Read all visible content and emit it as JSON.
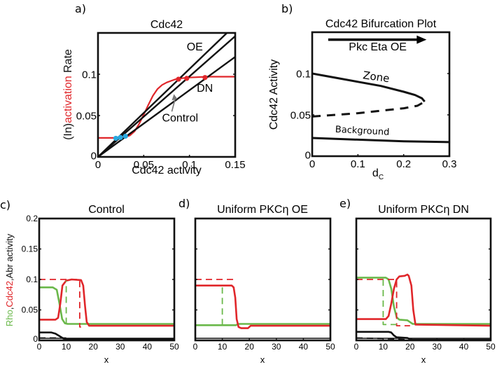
{
  "colors": {
    "red": "#e0262a",
    "green": "#6ab84a",
    "blue": "#29a9e0",
    "black": "#111111",
    "gray": "#777777"
  },
  "chart_data": [
    {
      "id": "a",
      "panel_label": "a)",
      "type": "line",
      "title": "Cdc42",
      "xlabel": "Cdc42 activity",
      "ylabel_parts": [
        {
          "text": "(In)",
          "color": "black"
        },
        {
          "text": "activation",
          "color": "red"
        },
        {
          "text": " Rate",
          "color": "black"
        }
      ],
      "xlim": [
        0,
        0.15
      ],
      "ylim": [
        0,
        0.15
      ],
      "xticks": [
        0,
        0.05,
        0.1,
        0.15
      ],
      "xtick_labels": [
        "0",
        "0.05",
        "0.1",
        "0.15"
      ],
      "yticks": [
        0,
        0.05,
        0.1
      ],
      "ytick_labels": [
        "0",
        "0.05",
        "0.1"
      ],
      "series": [
        {
          "name": "activation",
          "color": "red",
          "style": "solid",
          "x": [
            0,
            0.01,
            0.02,
            0.03,
            0.035,
            0.04,
            0.045,
            0.05,
            0.055,
            0.06,
            0.065,
            0.07,
            0.075,
            0.08,
            0.085,
            0.09,
            0.1,
            0.12,
            0.15
          ],
          "y": [
            0.023,
            0.023,
            0.023,
            0.024,
            0.026,
            0.031,
            0.04,
            0.051,
            0.063,
            0.074,
            0.082,
            0.087,
            0.09,
            0.092,
            0.094,
            0.095,
            0.096,
            0.097,
            0.097
          ]
        },
        {
          "name": "OE",
          "color": "black",
          "style": "solid",
          "x": [
            0,
            0.141
          ],
          "y": [
            0,
            0.15
          ]
        },
        {
          "name": "Control",
          "color": "black",
          "style": "solid",
          "x": [
            0,
            0.15
          ],
          "y": [
            0,
            0.146
          ]
        },
        {
          "name": "DN",
          "color": "black",
          "style": "solid",
          "x": [
            0,
            0.15
          ],
          "y": [
            0,
            0.121
          ]
        }
      ],
      "points": [
        {
          "x": 0.0195,
          "y": 0.0225,
          "color": "blue"
        },
        {
          "x": 0.0245,
          "y": 0.0235,
          "color": "blue"
        },
        {
          "x": 0.03,
          "y": 0.025,
          "color": "blue"
        },
        {
          "x": 0.088,
          "y": 0.094,
          "color": "red"
        },
        {
          "x": 0.097,
          "y": 0.095,
          "color": "red"
        },
        {
          "x": 0.117,
          "y": 0.096,
          "color": "red"
        }
      ],
      "annotations": [
        {
          "text": "OE",
          "x": 0.097,
          "y": 0.129
        },
        {
          "text": "DN",
          "x": 0.108,
          "y": 0.079
        },
        {
          "text": "Control",
          "x": 0.07,
          "y": 0.043,
          "arrow_to": [
            0.083,
            0.076
          ]
        }
      ]
    },
    {
      "id": "b",
      "panel_label": "b)",
      "type": "line",
      "title": "Cdc42 Bifurcation Plot",
      "xlabel": "d",
      "xlabel_sub": "C",
      "ylabel": "Cdc42 Activity",
      "xlim": [
        0,
        0.3
      ],
      "ylim": [
        0,
        0.15
      ],
      "xticks": [
        0,
        0.1,
        0.2,
        0.3
      ],
      "xtick_labels": [
        "0",
        "0.1",
        "0.2",
        "0.3"
      ],
      "yticks": [
        0,
        0.05,
        0.1
      ],
      "ytick_labels": [
        "0",
        "0.05",
        "0.1"
      ],
      "series": [
        {
          "name": "Zone (stable)",
          "color": "black",
          "style": "solid",
          "x": [
            0,
            0.05,
            0.1,
            0.15,
            0.2,
            0.225,
            0.24,
            0.246
          ],
          "y": [
            0.1,
            0.095,
            0.09,
            0.085,
            0.078,
            0.074,
            0.07,
            0.066
          ]
        },
        {
          "name": "Zone (unstable)",
          "color": "black",
          "style": "dashed",
          "x": [
            0,
            0.05,
            0.1,
            0.15,
            0.2,
            0.23,
            0.246
          ],
          "y": [
            0.048,
            0.05,
            0.052,
            0.055,
            0.058,
            0.061,
            0.066
          ]
        },
        {
          "name": "Background",
          "color": "black",
          "style": "solid",
          "x": [
            0,
            0.1,
            0.2,
            0.3
          ],
          "y": [
            0.022,
            0.02,
            0.018,
            0.017
          ]
        }
      ],
      "annotations": [
        {
          "text": "Zone",
          "x": 0.11,
          "y": 0.094,
          "rotate": 8
        },
        {
          "text": "Background",
          "x": 0.05,
          "y": 0.029,
          "rotate": 3
        },
        {
          "text": "Pkc Eta OE",
          "x": 0.08,
          "y": 0.128,
          "arrow": [
            [
              0.035,
              0.141
            ],
            [
              0.25,
              0.141
            ]
          ]
        }
      ]
    },
    {
      "id": "c",
      "panel_label": "c)",
      "type": "line",
      "title": "Control",
      "xlabel": "x",
      "ylabel_parts": [
        {
          "text": "Rho",
          "color": "green"
        },
        {
          "text": ",",
          "color": "black"
        },
        {
          "text": "Cdc42",
          "color": "red"
        },
        {
          "text": ",Abr activity",
          "color": "black"
        }
      ],
      "xlim": [
        0,
        50
      ],
      "ylim": [
        0,
        0.2
      ],
      "xticks": [
        0,
        10,
        20,
        30,
        40,
        50
      ],
      "xtick_labels": [
        "0",
        "10",
        "20",
        "30",
        "40",
        "50"
      ],
      "yticks": [
        0,
        0.05,
        0.1,
        0.15,
        0.2
      ],
      "ytick_labels": [
        "0",
        "0.05",
        "0.1",
        "0.15",
        "0.2"
      ],
      "series": [
        {
          "name": "Rho",
          "color": "green",
          "style": "solid",
          "x": [
            0,
            5,
            6.5,
            7.5,
            8.5,
            9.5,
            10.5,
            50
          ],
          "y": [
            0.087,
            0.087,
            0.083,
            0.06,
            0.035,
            0.028,
            0.027,
            0.027
          ]
        },
        {
          "name": "Cdc42",
          "color": "red",
          "style": "solid",
          "x": [
            0,
            6,
            7,
            7.8,
            8.6,
            10,
            12,
            15.5,
            16.3,
            17,
            17.6,
            18.5,
            50
          ],
          "y": [
            0.034,
            0.034,
            0.037,
            0.06,
            0.09,
            0.098,
            0.1,
            0.099,
            0.09,
            0.055,
            0.03,
            0.024,
            0.024
          ]
        },
        {
          "name": "Abr",
          "color": "black",
          "style": "solid",
          "x": [
            0,
            4.5,
            6,
            7.5,
            9,
            10,
            50
          ],
          "y": [
            0.013,
            0.013,
            0.011,
            0.007,
            0.003,
            0.002,
            0.002
          ]
        },
        {
          "name": "Cdc42 ref",
          "color": "red",
          "style": "dashed",
          "x": [
            0,
            15,
            15,
            15.5
          ],
          "y": [
            0.1,
            0.1,
            0.022,
            0.022
          ]
        },
        {
          "name": "Rho ref",
          "color": "green",
          "style": "dashed",
          "x": [
            10,
            10
          ],
          "y": [
            0.027,
            0.098
          ]
        },
        {
          "name": "Abr ref",
          "color": "black",
          "style": "dashed",
          "x": [
            0,
            10
          ],
          "y": [
            0.004,
            0.004
          ]
        }
      ]
    },
    {
      "id": "d",
      "panel_label": "d)",
      "type": "line",
      "title": "Uniform PKCη OE",
      "xlabel": "x",
      "xlim": [
        0,
        50
      ],
      "ylim": [
        0,
        0.2
      ],
      "xticks": [
        0,
        10,
        20,
        30,
        40,
        50
      ],
      "xtick_labels": [
        "0",
        "10",
        "20",
        "30",
        "40",
        "50"
      ],
      "yticks": [
        0,
        0.05,
        0.1,
        0.15,
        0.2
      ],
      "ytick_labels": [],
      "series": [
        {
          "name": "Rho",
          "color": "green",
          "style": "solid",
          "x": [
            0,
            15,
            16,
            20,
            21,
            50
          ],
          "y": [
            0.025,
            0.025,
            0.027,
            0.027,
            0.027,
            0.027
          ]
        },
        {
          "name": "Cdc42",
          "color": "red",
          "style": "solid",
          "x": [
            0,
            13.5,
            14.2,
            14.8,
            15.3,
            16,
            17,
            19.5,
            20.5,
            50
          ],
          "y": [
            0.09,
            0.09,
            0.087,
            0.07,
            0.035,
            0.022,
            0.02,
            0.02,
            0.024,
            0.024
          ]
        },
        {
          "name": "Cdc42 ref",
          "color": "red",
          "style": "dashed",
          "x": [
            0,
            15
          ],
          "y": [
            0.1,
            0.1
          ]
        },
        {
          "name": "Rho ref",
          "color": "green",
          "style": "dashed",
          "x": [
            10,
            10
          ],
          "y": [
            0.025,
            0.09
          ]
        }
      ]
    },
    {
      "id": "e",
      "panel_label": "e)",
      "type": "line",
      "title": "Uniform PKCη DN",
      "xlabel": "x",
      "xlim": [
        0,
        50
      ],
      "ylim": [
        0,
        0.2
      ],
      "xticks": [
        0,
        10,
        20,
        30,
        40,
        50
      ],
      "xtick_labels": [
        "0",
        "10",
        "20",
        "30",
        "40",
        "50"
      ],
      "yticks": [
        0,
        0.05,
        0.1,
        0.15,
        0.2
      ],
      "ytick_labels": [],
      "series": [
        {
          "name": "Rho",
          "color": "green",
          "style": "solid",
          "x": [
            0,
            11,
            12,
            13,
            14,
            15,
            16,
            19,
            20,
            21,
            50
          ],
          "y": [
            0.103,
            0.103,
            0.1,
            0.085,
            0.055,
            0.038,
            0.034,
            0.033,
            0.03,
            0.027,
            0.027
          ]
        },
        {
          "name": "Cdc42",
          "color": "red",
          "style": "solid",
          "x": [
            0,
            11,
            12,
            13,
            14,
            15,
            16,
            18,
            19,
            19.5,
            20.5,
            21.2,
            22,
            50
          ],
          "y": [
            0.035,
            0.035,
            0.04,
            0.06,
            0.085,
            0.1,
            0.105,
            0.106,
            0.108,
            0.106,
            0.09,
            0.05,
            0.026,
            0.024
          ]
        },
        {
          "name": "Abr",
          "color": "black",
          "style": "solid",
          "x": [
            0,
            12,
            13,
            14,
            15,
            19,
            20,
            21,
            50
          ],
          "y": [
            0.014,
            0.014,
            0.013,
            0.008,
            0.005,
            0.004,
            0.002,
            0.001,
            0.001
          ]
        },
        {
          "name": "Cdc42 ref",
          "color": "red",
          "style": "dashed",
          "x": [
            0,
            15,
            15,
            20
          ],
          "y": [
            0.1,
            0.1,
            0.024,
            0.024
          ]
        },
        {
          "name": "Rho ref",
          "color": "green",
          "style": "dashed",
          "x": [
            10,
            10,
            15
          ],
          "y": [
            0.1,
            0.026,
            0.026
          ]
        },
        {
          "name": "Abr ref",
          "color": "black",
          "style": "dashed",
          "x": [
            0,
            10,
            20
          ],
          "y": [
            0.004,
            0.003,
            0.001
          ]
        }
      ]
    }
  ]
}
